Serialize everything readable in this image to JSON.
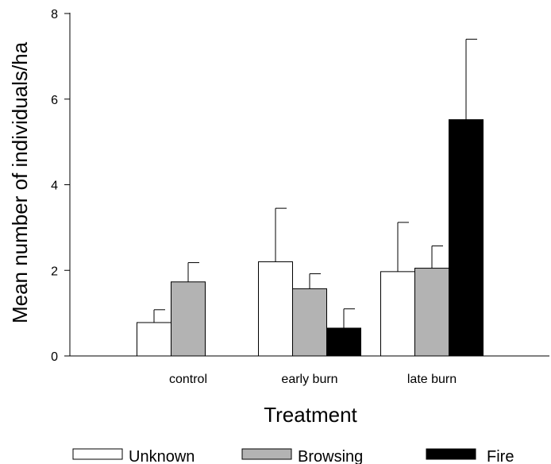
{
  "chart_data": {
    "type": "bar",
    "xlabel": "Treatment",
    "ylabel": "Mean number of individuals/ha",
    "categories": [
      "control",
      "early burn",
      "late burn"
    ],
    "ylim": [
      0,
      8
    ],
    "yticks": [
      0,
      2,
      4,
      6,
      8
    ],
    "grid": false,
    "legend_position": "bottom",
    "error_bars": "upper",
    "series": [
      {
        "name": "Unknown",
        "color": "#ffffff",
        "values": [
          0.78,
          2.2,
          1.97
        ],
        "errors": [
          0.3,
          1.25,
          1.15
        ]
      },
      {
        "name": "Browsing",
        "color": "#b3b3b3",
        "values": [
          1.73,
          1.57,
          2.05
        ],
        "errors": [
          0.45,
          0.35,
          0.52
        ]
      },
      {
        "name": "Fire",
        "color": "#000000",
        "values": [
          0,
          0.65,
          5.52
        ],
        "errors": [
          0,
          0.45,
          1.88
        ]
      }
    ]
  }
}
